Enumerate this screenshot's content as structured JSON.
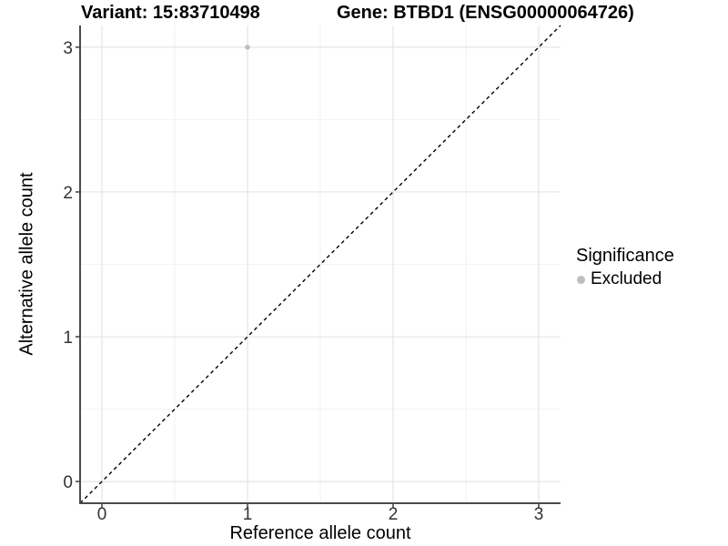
{
  "chart_data": {
    "type": "scatter",
    "title_left": "Variant: 15:83710498",
    "title_right": "Gene: BTBD1 (ENSG00000064726)",
    "xlabel": "Reference allele count",
    "ylabel": "Alternative allele count",
    "xlim": [
      -0.15,
      3.15
    ],
    "ylim": [
      -0.15,
      3.15
    ],
    "xticks": [
      0,
      1,
      2,
      3
    ],
    "yticks": [
      0,
      1,
      2,
      3
    ],
    "minor_xticks": [
      0.5,
      1.5,
      2.5
    ],
    "minor_yticks": [
      0.5,
      1.5,
      2.5
    ],
    "grid": "major+minor",
    "points": [
      {
        "x": 1,
        "y": 3,
        "series": "Excluded"
      }
    ],
    "reference_line": {
      "type": "identity",
      "style": "dashed",
      "color": "#000000"
    },
    "legend": {
      "title": "Significance",
      "position": "right",
      "entries": [
        {
          "label": "Excluded",
          "color": "#bebebe"
        }
      ]
    },
    "colors": {
      "background": "#ffffff",
      "grid_major": "#e4e4e4",
      "grid_minor": "#f2f2f2",
      "axis_line": "#4a4a4a",
      "tick_text": "#333333",
      "title_text": "#000000",
      "point": "#bebebe"
    }
  }
}
